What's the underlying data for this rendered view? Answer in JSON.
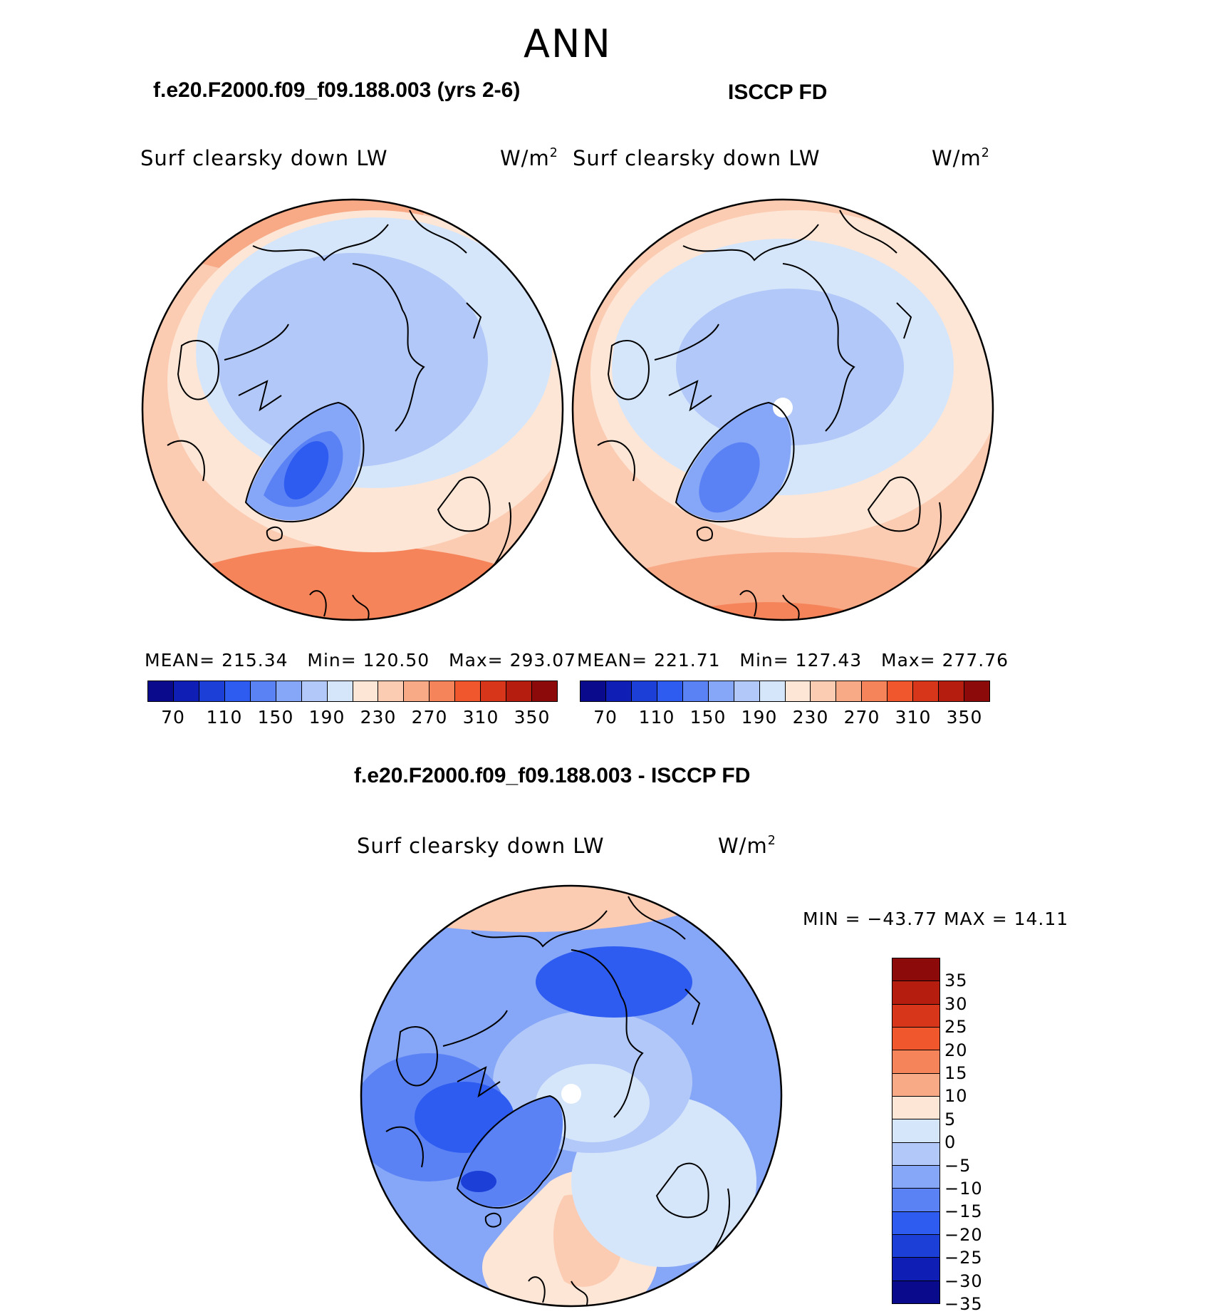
{
  "header": {
    "season": "ANN"
  },
  "panels": [
    {
      "case_title": "f.e20.F2000.f09_f09.188.003 (yrs 2-6)",
      "variable": "Surf clearsky down LW",
      "units_base": "W/m",
      "units_exp": "2",
      "stats": {
        "mean_label": "MEAN=",
        "mean": "215.34",
        "min_label": "Min=",
        "min": "120.50",
        "max_label": "Max=",
        "max": "293.07"
      }
    },
    {
      "case_title": "ISCCP FD",
      "variable": "Surf clearsky down LW",
      "units_base": "W/m",
      "units_exp": "2",
      "stats": {
        "mean_label": "MEAN=",
        "mean": "221.71",
        "min_label": "Min=",
        "min": "127.43",
        "max_label": "Max=",
        "max": "277.76"
      }
    }
  ],
  "diff_panel": {
    "title": "f.e20.F2000.f09_f09.188.003 - ISCCP FD",
    "variable": "Surf clearsky down LW",
    "units_base": "W/m",
    "units_exp": "2",
    "stats_text": "MIN = −43.77 MAX =  14.11"
  },
  "colorbar_abs": {
    "colors": [
      "#0a0a8c",
      "#0f1fb5",
      "#1c3fd8",
      "#2e5cf0",
      "#5a82f5",
      "#86a6f7",
      "#b2c8f8",
      "#d6e6fa",
      "#fde6d6",
      "#fbcbb2",
      "#f8a986",
      "#f5845a",
      "#f0572c",
      "#d8361a",
      "#b51d0f",
      "#8c0a0a"
    ],
    "ticks": [
      "70",
      "110",
      "150",
      "190",
      "230",
      "270",
      "310",
      "350"
    ]
  },
  "colorbar_diff": {
    "colors": [
      "#8c0a0a",
      "#b51d0f",
      "#d8361a",
      "#f0572c",
      "#f5845a",
      "#f8a986",
      "#fde6d6",
      "#d6e6fa",
      "#b2c8f8",
      "#86a6f7",
      "#5a82f5",
      "#2e5cf0",
      "#1c3fd8",
      "#0f1fb5",
      "#0a0a8c"
    ],
    "ticks": [
      "35",
      "30",
      "25",
      "20",
      "15",
      "10",
      "5",
      "0",
      "−5",
      "−10",
      "−15",
      "−20",
      "−25",
      "−30",
      "−35"
    ]
  }
}
